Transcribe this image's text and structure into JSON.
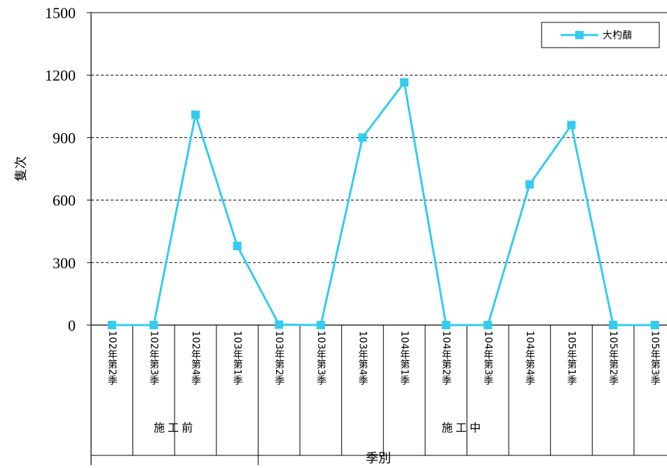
{
  "chart_data": {
    "type": "line",
    "xlabel": "季別",
    "ylabel": "隻次",
    "ylim": [
      0,
      1500
    ],
    "yticks": [
      0,
      300,
      600,
      900,
      1200,
      1500
    ],
    "grid": "horizontal dashed",
    "legend_position": "top-right",
    "categories": [
      "102年第2季",
      "102年第3季",
      "102年第4季",
      "103年第1季",
      "103年第2季",
      "103年第3季",
      "103年第4季",
      "104年第1季",
      "104年第2季",
      "104年第3季",
      "104年第4季",
      "105年第1季",
      "105年第2季",
      "105年第3季"
    ],
    "groups": [
      {
        "label": "施工前",
        "count": 4
      },
      {
        "label": "施工中",
        "count": 10
      }
    ],
    "series": [
      {
        "name": "大杓鷸",
        "color": "#33ccee",
        "marker": "square",
        "values": [
          0,
          0,
          1010,
          380,
          2,
          0,
          900,
          1165,
          0,
          0,
          675,
          960,
          0,
          0
        ]
      }
    ]
  }
}
